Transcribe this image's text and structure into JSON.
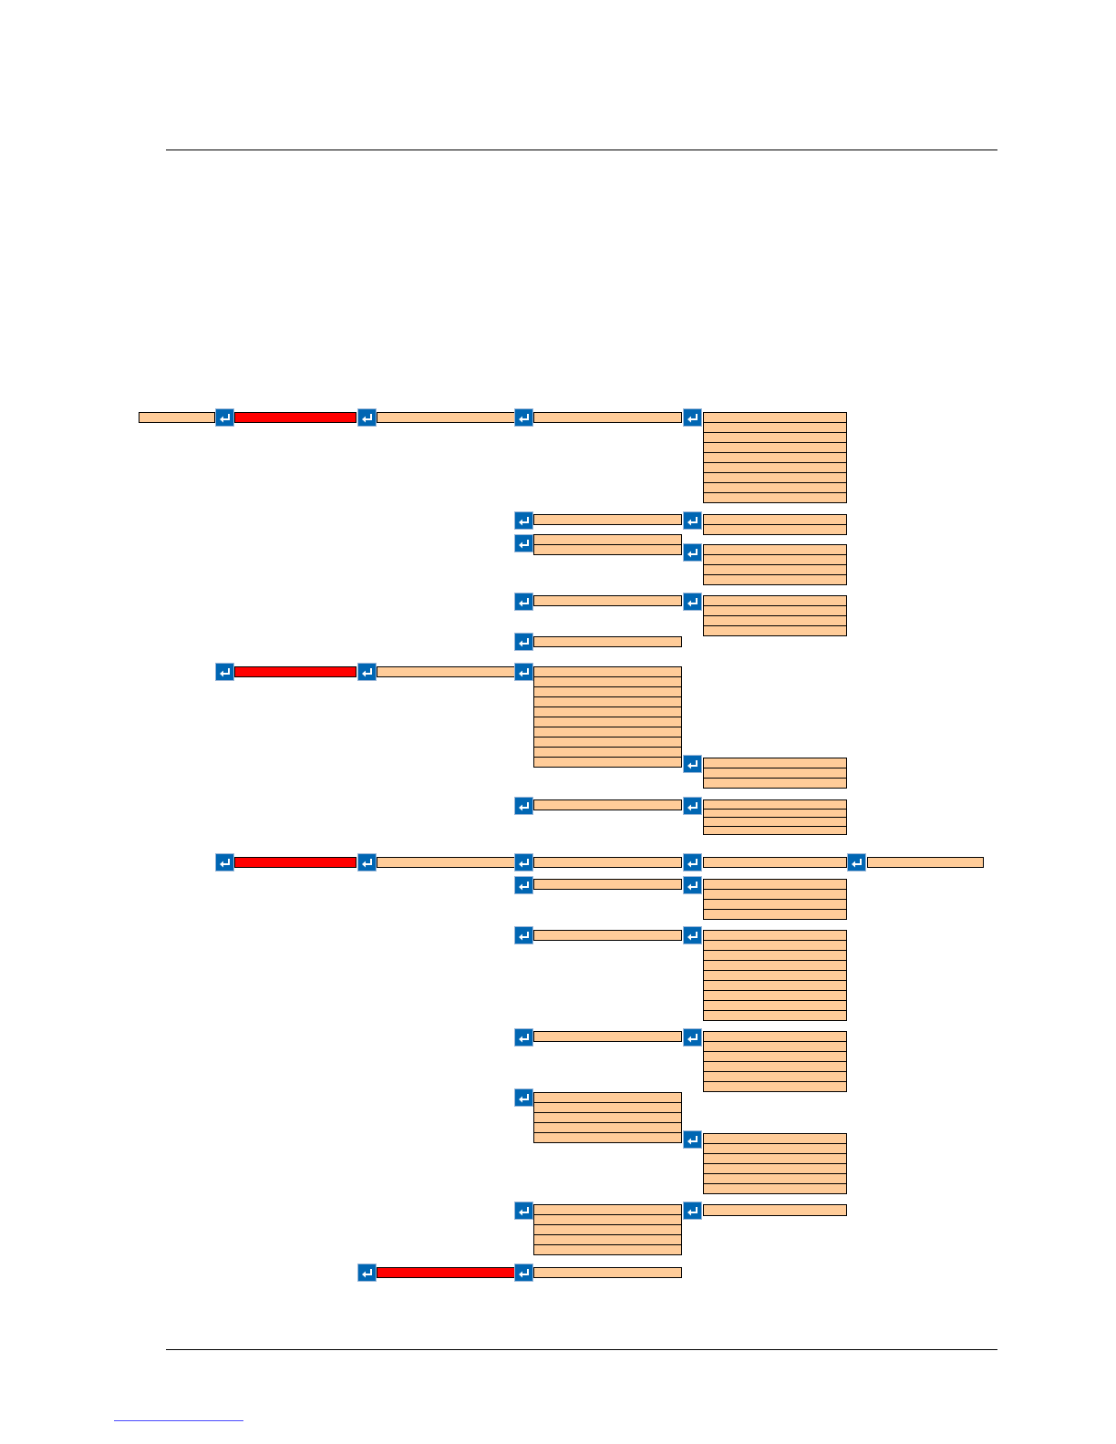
{
  "colors": {
    "box_fill": "#ffcc99",
    "highlight": "#ff0000",
    "enter_icon": "#0066b3",
    "link": "#4a4aff"
  },
  "menu_tree": {
    "icon_name": "enter-key-icon"
  }
}
